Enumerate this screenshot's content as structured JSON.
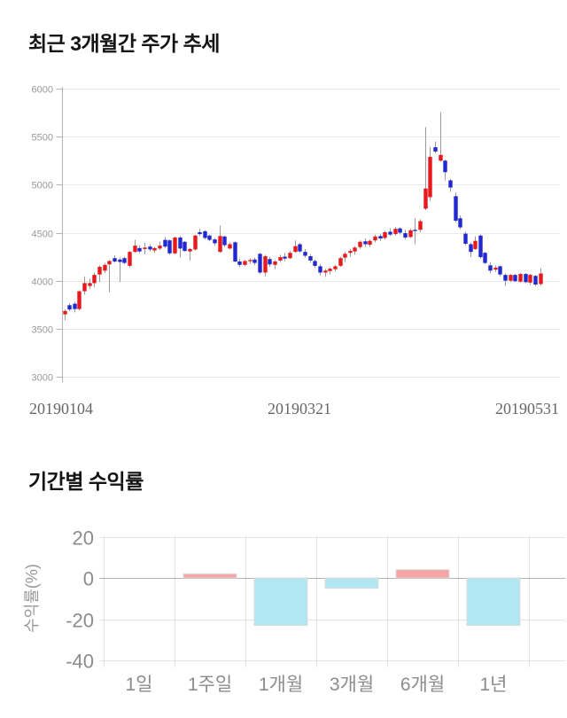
{
  "colors": {
    "price": {
      "up": "#e7191d",
      "down": "#2228d0",
      "wick": "#9a9a9a",
      "grid": "#eaeaea",
      "axis": "#b3b3b3",
      "tick_label": "#999999",
      "date_label": "#666666"
    },
    "returns": {
      "positive": "#f7a4a6",
      "negative": "#b2e6f0",
      "bar_stroke": "#dcdcdc",
      "grid": "#e4e4e4",
      "zero_line": "#b3b3b3",
      "label": "#8c8c8c",
      "axis_title": "#999999"
    }
  },
  "chart_data": [
    {
      "type": "candlestick",
      "title": "최근 3개월간 주가 추세",
      "ylim": [
        3000,
        6000
      ],
      "y_ticks": [
        6000,
        5500,
        5000,
        4500,
        4000,
        3500,
        3000
      ],
      "x_labels": [
        "20190104",
        "20190321",
        "20190531"
      ],
      "grid": "horizontal",
      "ohlc_format": [
        "open",
        "high",
        "low",
        "close"
      ],
      "ohlc": [
        [
          3650,
          3700,
          3590,
          3685
        ],
        [
          3745,
          3765,
          3680,
          3700
        ],
        [
          3760,
          3780,
          3670,
          3705
        ],
        [
          3705,
          3900,
          3690,
          3890
        ],
        [
          3890,
          4045,
          3855,
          3975
        ],
        [
          3945,
          4020,
          3915,
          3975
        ],
        [
          3975,
          4085,
          3930,
          4060
        ],
        [
          4065,
          4160,
          3985,
          4145
        ],
        [
          4105,
          4185,
          4080,
          4165
        ],
        [
          4170,
          4215,
          3880,
          4205
        ],
        [
          4235,
          4265,
          4185,
          4200
        ],
        [
          4220,
          4240,
          3985,
          4195
        ],
        [
          4235,
          4250,
          4170,
          4185
        ],
        [
          4155,
          4310,
          4140,
          4300
        ],
        [
          4300,
          4425,
          4290,
          4365
        ],
        [
          4340,
          4370,
          4285,
          4305
        ],
        [
          4330,
          4395,
          4275,
          4345
        ],
        [
          4355,
          4380,
          4305,
          4325
        ],
        [
          4315,
          4350,
          4290,
          4340
        ],
        [
          4335,
          4405,
          4320,
          4365
        ],
        [
          4425,
          4455,
          4340,
          4355
        ],
        [
          4420,
          4430,
          4270,
          4285
        ],
        [
          4285,
          4460,
          4275,
          4450
        ],
        [
          4450,
          4465,
          4240,
          4335
        ],
        [
          4405,
          4415,
          4300,
          4310
        ],
        [
          4305,
          4340,
          4210,
          4330
        ],
        [
          4325,
          4480,
          4315,
          4470
        ],
        [
          4505,
          4540,
          4465,
          4485
        ],
        [
          4515,
          4525,
          4430,
          4445
        ],
        [
          4470,
          4480,
          4410,
          4425
        ],
        [
          4430,
          4445,
          4365,
          4390
        ],
        [
          4300,
          4575,
          4290,
          4465
        ],
        [
          4460,
          4470,
          4350,
          4370
        ],
        [
          4335,
          4400,
          4325,
          4380
        ],
        [
          4400,
          4410,
          4190,
          4200
        ],
        [
          4200,
          4230,
          4145,
          4165
        ],
        [
          4165,
          4215,
          4150,
          4205
        ],
        [
          4210,
          4235,
          4175,
          4215
        ],
        [
          4220,
          4240,
          4160,
          4185
        ],
        [
          4280,
          4290,
          4070,
          4085
        ],
        [
          4085,
          4270,
          4045,
          4255
        ],
        [
          4225,
          4250,
          4145,
          4170
        ],
        [
          4165,
          4215,
          4120,
          4200
        ],
        [
          4210,
          4270,
          4195,
          4245
        ],
        [
          4250,
          4290,
          4205,
          4230
        ],
        [
          4235,
          4310,
          4225,
          4290
        ],
        [
          4300,
          4420,
          4290,
          4360
        ],
        [
          4380,
          4395,
          4290,
          4305
        ],
        [
          4300,
          4330,
          4240,
          4260
        ],
        [
          4255,
          4275,
          4185,
          4210
        ],
        [
          4205,
          4220,
          4135,
          4155
        ],
        [
          4150,
          4175,
          4055,
          4085
        ],
        [
          4085,
          4125,
          4040,
          4105
        ],
        [
          4100,
          4140,
          4065,
          4125
        ],
        [
          4120,
          4165,
          4095,
          4150
        ],
        [
          4155,
          4250,
          4145,
          4235
        ],
        [
          4240,
          4300,
          4195,
          4280
        ],
        [
          4290,
          4330,
          4250,
          4310
        ],
        [
          4305,
          4360,
          4270,
          4345
        ],
        [
          4350,
          4420,
          4330,
          4405
        ],
        [
          4410,
          4440,
          4355,
          4380
        ],
        [
          4375,
          4430,
          4350,
          4415
        ],
        [
          4420,
          4480,
          4400,
          4460
        ],
        [
          4465,
          4490,
          4415,
          4440
        ],
        [
          4445,
          4520,
          4430,
          4505
        ],
        [
          4510,
          4545,
          4465,
          4480
        ],
        [
          4485,
          4560,
          4470,
          4540
        ],
        [
          4545,
          4555,
          4480,
          4500
        ],
        [
          4495,
          4530,
          4430,
          4450
        ],
        [
          4455,
          4540,
          4445,
          4525
        ],
        [
          4530,
          4650,
          4380,
          4520
        ],
        [
          4530,
          4640,
          4505,
          4620
        ],
        [
          4750,
          5600,
          4735,
          4960
        ],
        [
          4870,
          5395,
          4830,
          5290
        ],
        [
          5390,
          5450,
          5325,
          5345
        ],
        [
          5250,
          5755,
          5240,
          5310
        ],
        [
          5250,
          5260,
          5045,
          5130
        ],
        [
          5045,
          5060,
          4925,
          4970
        ],
        [
          4880,
          4920,
          4605,
          4625
        ],
        [
          4650,
          4680,
          4535,
          4555
        ],
        [
          4490,
          4510,
          4370,
          4385
        ],
        [
          4380,
          4400,
          4245,
          4300
        ],
        [
          4330,
          4460,
          4320,
          4415
        ],
        [
          4470,
          4480,
          4230,
          4245
        ],
        [
          4290,
          4300,
          4170,
          4185
        ],
        [
          4160,
          4190,
          4075,
          4105
        ],
        [
          4115,
          4160,
          4090,
          4135
        ],
        [
          4150,
          4160,
          4045,
          4065
        ],
        [
          4060,
          4075,
          3945,
          4000
        ],
        [
          4000,
          4070,
          3985,
          4060
        ],
        [
          4060,
          4070,
          3985,
          3995
        ],
        [
          3990,
          4080,
          3980,
          4070
        ],
        [
          4070,
          4080,
          3975,
          3985
        ],
        [
          3980,
          4070,
          3955,
          4060
        ],
        [
          4050,
          4060,
          3945,
          3960
        ],
        [
          3965,
          4130,
          3950,
          4075
        ]
      ]
    },
    {
      "type": "bar",
      "title": "기간별 수익률",
      "xlabel": "",
      "ylabel": "수익률(%)",
      "ylim": [
        -40,
        20
      ],
      "y_ticks": [
        20,
        0,
        -20,
        -40
      ],
      "categories": [
        "1일",
        "1주일",
        "1개월",
        "3개월",
        "6개월",
        "1년"
      ],
      "values": [
        0,
        2,
        -23,
        -5,
        4,
        -23
      ],
      "legend": "none",
      "grid": "both"
    }
  ]
}
